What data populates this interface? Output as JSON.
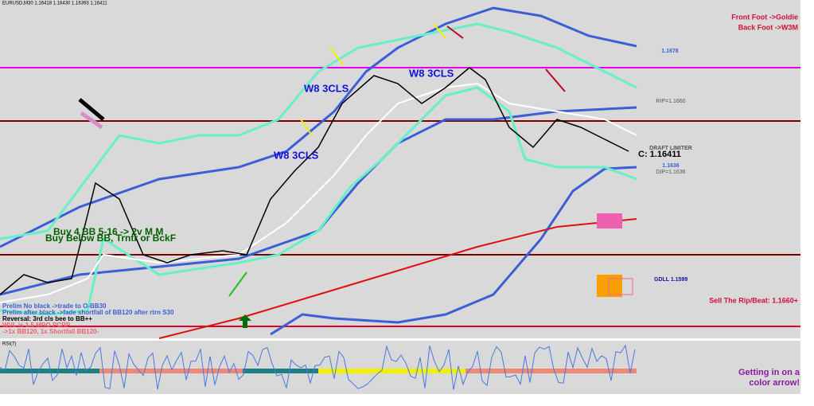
{
  "header": {
    "symbol": "EURUSD,M30 1.16418 1.16430 1.16393 1.16411"
  },
  "annotations": {
    "front_foot": "Front Foot ->Goldie",
    "back_foot": "Back Foot ->W3M",
    "level_top": "1.1678",
    "w8_1": "W8 3CLS",
    "w8_2": "W8 3CLS",
    "w8_3": "W8 3CLS",
    "rip": "RIP=1.1660",
    "draft": "DRAFT LIMITER",
    "close": "C: 1.16411",
    "level_mid": "1.1636",
    "dip": "DIP=1.1636",
    "buy1": "Buy 4 BB 5-16 -> 2v M M",
    "buy2": "Buy Below BB, Trntr or BckF",
    "gdll": "GDLL 1.1599",
    "sell": "Sell The Rip/Beat: 1.1660+",
    "note1": "Prelim No black ->trade to O-BB30",
    "note2": "Prelim after black ->fade shortfall of BB120 after rtrn S30",
    "note3": "Reversal: 3rd cls bee to BB++",
    "note4": "WVL is 1.5 MRO PCRP",
    "note5": "->1x BB120, 1x Shortfall BB120-",
    "arrow_tip": "Getting in on a color arrow!"
  },
  "indicator": {
    "label": "RSI(7)"
  }
}
